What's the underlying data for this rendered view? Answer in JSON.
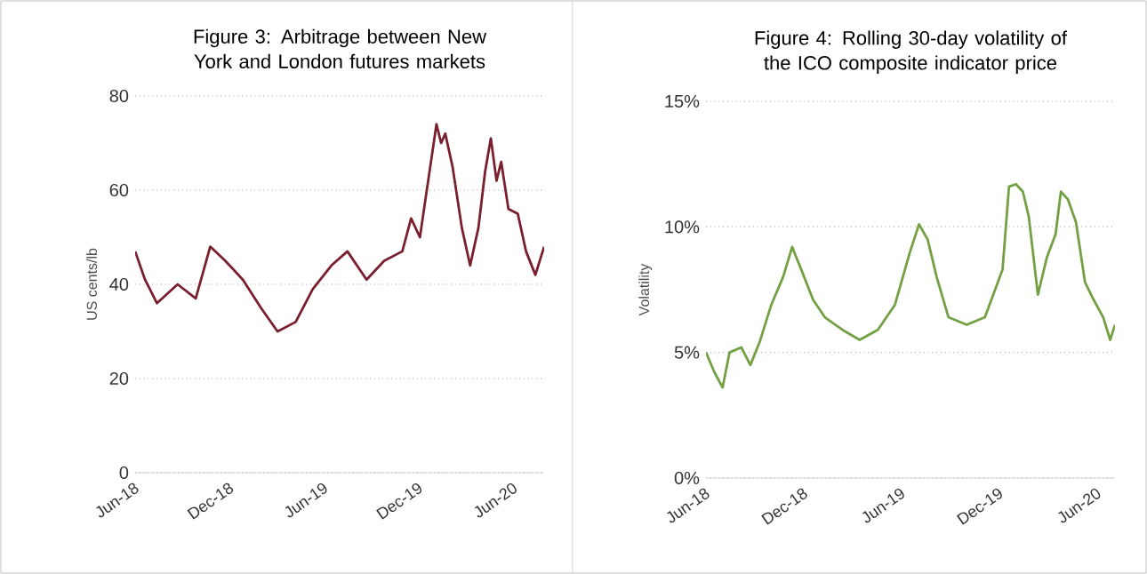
{
  "chart_data": [
    {
      "type": "line",
      "title": "Figure 3:  Arbitrage between New York and London futures markets",
      "ylabel": "US cents/lb",
      "grid": "y",
      "line_style": "solid",
      "xlim": [
        "2018-06-01",
        "2020-07-30"
      ],
      "ylim": [
        0,
        80
      ],
      "yticks": [
        0,
        20,
        40,
        60,
        80
      ],
      "xticks": [
        {
          "value": "2018-06-01",
          "label": "Jun-18"
        },
        {
          "value": "2018-12-01",
          "label": "Dec-18"
        },
        {
          "value": "2019-06-01",
          "label": "Jun-19"
        },
        {
          "value": "2019-12-01",
          "label": "Dec-19"
        },
        {
          "value": "2020-06-01",
          "label": "Jun-20"
        }
      ],
      "series": [
        {
          "color": "#7a1f2e",
          "x": [
            "2018-06-01",
            "2018-06-20",
            "2018-07-13",
            "2018-08-22",
            "2018-09-26",
            "2018-10-24",
            "2018-11-22",
            "2018-12-26",
            "2019-01-30",
            "2019-03-03",
            "2019-04-07",
            "2019-05-10",
            "2019-06-15",
            "2019-07-16",
            "2019-08-22",
            "2019-09-25",
            "2019-10-30",
            "2019-11-16",
            "2019-12-03",
            "2019-12-19",
            "2020-01-04",
            "2020-01-13",
            "2020-01-21",
            "2020-02-04",
            "2020-02-22",
            "2020-03-09",
            "2020-03-25",
            "2020-04-07",
            "2020-04-18",
            "2020-04-29",
            "2020-05-08",
            "2020-05-22",
            "2020-06-09",
            "2020-06-25",
            "2020-07-13",
            "2020-07-30"
          ],
          "values": [
            47,
            41,
            36,
            40,
            37,
            48,
            45,
            41,
            35,
            30,
            32,
            39,
            44,
            47,
            41,
            45,
            47,
            54,
            50,
            62,
            74,
            70,
            72,
            65,
            52,
            44,
            52,
            64,
            71,
            62,
            66,
            56,
            55,
            47,
            42,
            48
          ]
        }
      ]
    },
    {
      "type": "line",
      "title": "Figure 4:  Rolling 30-day volatility of the ICO  composite indicator price",
      "ylabel": "Volatility",
      "grid": "y",
      "line_style": "solid",
      "xlim": [
        "2018-06-01",
        "2020-07-04"
      ],
      "ylim": [
        0,
        15
      ],
      "yticks": [
        {
          "value": 0,
          "label": "0%"
        },
        {
          "value": 5,
          "label": "5%"
        },
        {
          "value": 10,
          "label": "10%"
        },
        {
          "value": 15,
          "label": "15%"
        }
      ],
      "xticks": [
        {
          "value": "2018-06-01",
          "label": "Jun-18"
        },
        {
          "value": "2018-12-01",
          "label": "Dec-18"
        },
        {
          "value": "2019-06-01",
          "label": "Jun-19"
        },
        {
          "value": "2019-12-01",
          "label": "Dec-19"
        },
        {
          "value": "2020-06-01",
          "label": "Jun-20"
        }
      ],
      "series": [
        {
          "color": "#74a044",
          "x": [
            "2018-06-01",
            "2018-06-17",
            "2018-07-02",
            "2018-07-15",
            "2018-08-06",
            "2018-08-23",
            "2018-09-09",
            "2018-10-01",
            "2018-10-23",
            "2018-11-09",
            "2018-11-26",
            "2018-12-18",
            "2019-01-09",
            "2019-02-11",
            "2019-03-15",
            "2019-04-18",
            "2019-05-20",
            "2019-06-17",
            "2019-07-04",
            "2019-07-20",
            "2019-08-06",
            "2019-08-28",
            "2019-10-01",
            "2019-11-04",
            "2019-12-07",
            "2019-12-19",
            "2020-01-01",
            "2020-01-14",
            "2020-01-25",
            "2020-02-11",
            "2020-02-28",
            "2020-03-15",
            "2020-03-25",
            "2020-04-07",
            "2020-04-22",
            "2020-05-09",
            "2020-05-25",
            "2020-06-12",
            "2020-06-25",
            "2020-07-04"
          ],
          "values": [
            5.0,
            4.2,
            3.6,
            5.0,
            5.2,
            4.5,
            5.4,
            6.9,
            8.0,
            9.2,
            8.3,
            7.1,
            6.4,
            5.9,
            5.5,
            5.9,
            6.9,
            9.0,
            10.1,
            9.5,
            8.0,
            6.4,
            6.1,
            6.4,
            8.3,
            11.6,
            11.7,
            11.4,
            10.4,
            7.3,
            8.8,
            9.7,
            11.4,
            11.1,
            10.2,
            7.8,
            7.1,
            6.4,
            5.5,
            6.1
          ]
        }
      ]
    }
  ]
}
